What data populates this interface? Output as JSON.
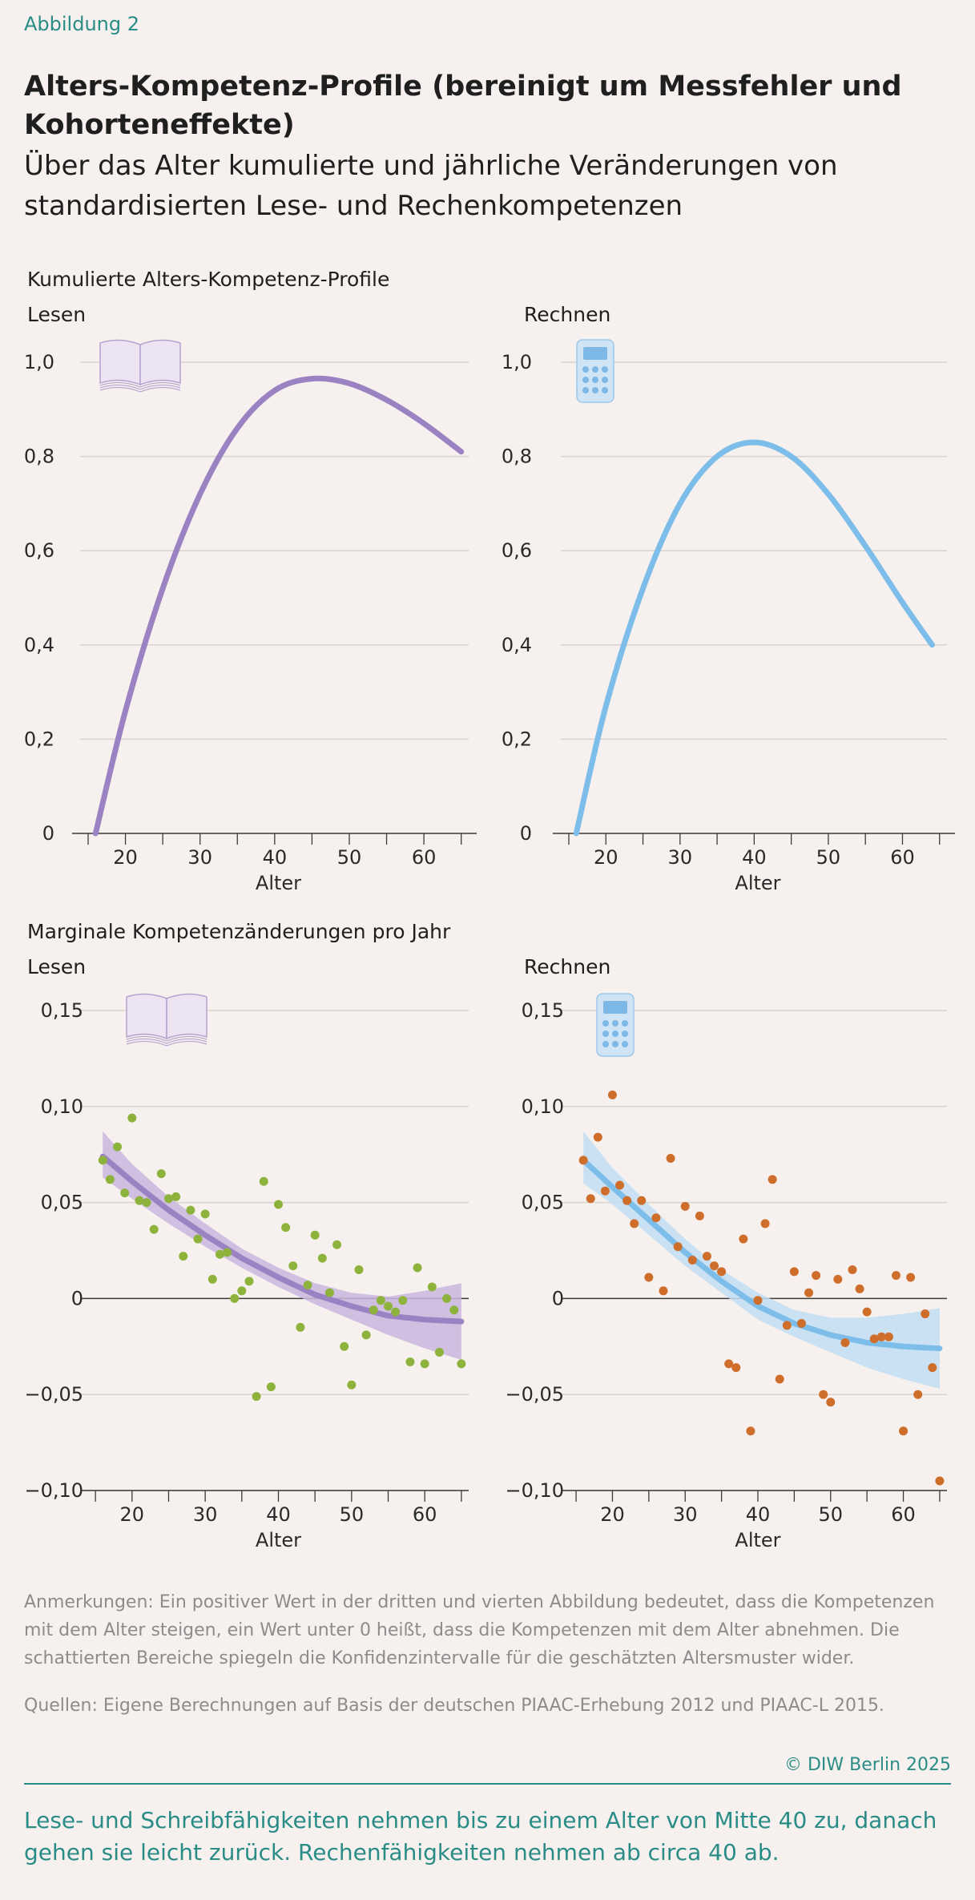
{
  "header": {
    "kicker": "Abbildung 2",
    "title": "Alters-Kompetenz-Profile (bereinigt um Messfehler und Kohorteneffekte)",
    "subtitle": "Über das Alter kumulierte und jährliche Veränderungen von standardisierten Lese- und Rechenkompetenzen"
  },
  "sections": {
    "cumulative": "Kumulierte Alters-Kompetenz-Profile",
    "marginal": "Marginale Kompetenzänderungen pro Jahr"
  },
  "colors": {
    "lesen": "#9b82c2",
    "lesen_band": "#c9b6de",
    "rechnen": "#7dbde9",
    "rechnen_band": "#c2def3",
    "lesen_dots": "#8db33c",
    "rechnen_dots": "#cf6d2a",
    "accent": "#2a8c86"
  },
  "icons": {
    "lesen": "book-icon",
    "rechnen": "calculator-icon"
  },
  "chart_data": [
    {
      "type": "line",
      "panel": "Lesen",
      "xlabel": "Alter",
      "ylabel": "",
      "xlim": [
        15,
        66
      ],
      "ylim": [
        0,
        1.0
      ],
      "x_ticks": [
        20,
        30,
        40,
        50,
        60
      ],
      "y_ticks": [
        0,
        0.2,
        0.4,
        0.6,
        0.8,
        1.0
      ],
      "y_tick_labels": [
        "0",
        "0,2",
        "0,4",
        "0,6",
        "0,8",
        "1,0"
      ],
      "series": [
        {
          "x": [
            16,
            20,
            25,
            30,
            35,
            40,
            45,
            50,
            55,
            60,
            65
          ],
          "y": [
            0.0,
            0.26,
            0.52,
            0.72,
            0.86,
            0.94,
            0.965,
            0.955,
            0.92,
            0.87,
            0.81
          ]
        }
      ]
    },
    {
      "type": "line",
      "panel": "Rechnen",
      "xlabel": "Alter",
      "ylabel": "",
      "xlim": [
        15,
        66
      ],
      "ylim": [
        0,
        1.0
      ],
      "x_ticks": [
        20,
        30,
        40,
        50,
        60
      ],
      "y_ticks": [
        0,
        0.2,
        0.4,
        0.6,
        0.8,
        1.0
      ],
      "y_tick_labels": [
        "0",
        "0,2",
        "0,4",
        "0,6",
        "0,8",
        "1,0"
      ],
      "series": [
        {
          "x": [
            16,
            20,
            25,
            30,
            35,
            40,
            45,
            50,
            55,
            60,
            64
          ],
          "y": [
            0.0,
            0.27,
            0.52,
            0.7,
            0.8,
            0.83,
            0.8,
            0.72,
            0.61,
            0.49,
            0.4
          ]
        }
      ]
    },
    {
      "type": "scatter",
      "panel": "Lesen",
      "xlabel": "Alter",
      "ylabel": "",
      "xlim": [
        14,
        66
      ],
      "ylim": [
        -0.1,
        0.16
      ],
      "x_ticks": [
        20,
        30,
        40,
        50,
        60
      ],
      "y_ticks": [
        -0.1,
        -0.05,
        0,
        0.05,
        0.1,
        0.15
      ],
      "y_tick_labels": [
        "−0,10",
        "−0,05",
        "0",
        "0,05",
        "0,10",
        "0,15"
      ],
      "fit": {
        "x": [
          16,
          20,
          25,
          30,
          35,
          40,
          45,
          50,
          55,
          60,
          65
        ],
        "y": [
          0.074,
          0.061,
          0.046,
          0.033,
          0.021,
          0.011,
          0.002,
          -0.004,
          -0.009,
          -0.011,
          -0.012
        ],
        "lower": [
          0.063,
          0.052,
          0.039,
          0.027,
          0.016,
          0.006,
          -0.003,
          -0.011,
          -0.019,
          -0.026,
          -0.032
        ],
        "upper": [
          0.087,
          0.07,
          0.053,
          0.039,
          0.026,
          0.016,
          0.008,
          0.003,
          0.001,
          0.004,
          0.008
        ]
      },
      "points": {
        "x": [
          16,
          17,
          18,
          19,
          20,
          21,
          22,
          23,
          24,
          25,
          26,
          27,
          28,
          29,
          30,
          31,
          32,
          33,
          34,
          35,
          36,
          37,
          38,
          39,
          40,
          41,
          42,
          43,
          44,
          45,
          46,
          47,
          48,
          49,
          50,
          51,
          52,
          53,
          54,
          55,
          56,
          57,
          58,
          59,
          60,
          61,
          62,
          63,
          64,
          65
        ],
        "y": [
          0.072,
          0.062,
          0.079,
          0.055,
          0.094,
          0.051,
          0.05,
          0.036,
          0.065,
          0.052,
          0.053,
          0.022,
          0.046,
          0.031,
          0.044,
          0.01,
          0.023,
          0.024,
          0.0,
          0.004,
          0.009,
          -0.051,
          0.061,
          -0.046,
          0.049,
          0.037,
          0.017,
          -0.015,
          0.007,
          0.033,
          0.021,
          0.003,
          0.028,
          -0.025,
          -0.045,
          0.015,
          -0.019,
          -0.006,
          -0.001,
          -0.004,
          -0.007,
          -0.001,
          -0.033,
          0.016,
          -0.034,
          0.006,
          -0.028,
          0.0,
          -0.006,
          -0.034
        ]
      }
    },
    {
      "type": "scatter",
      "panel": "Rechnen",
      "xlabel": "Alter",
      "ylabel": "",
      "xlim": [
        14,
        66
      ],
      "ylim": [
        -0.1,
        0.16
      ],
      "x_ticks": [
        20,
        30,
        40,
        50,
        60
      ],
      "y_ticks": [
        -0.1,
        -0.05,
        0,
        0.05,
        0.1,
        0.15
      ],
      "y_tick_labels": [
        "−0,10",
        "−0,05",
        "0",
        "0,05",
        "0,10",
        "0,15"
      ],
      "fit": {
        "x": [
          16,
          20,
          25,
          30,
          35,
          40,
          45,
          50,
          55,
          60,
          65
        ],
        "y": [
          0.072,
          0.058,
          0.041,
          0.024,
          0.009,
          -0.004,
          -0.013,
          -0.019,
          -0.023,
          -0.025,
          -0.026
        ],
        "lower": [
          0.06,
          0.049,
          0.033,
          0.017,
          0.003,
          -0.011,
          -0.02,
          -0.028,
          -0.036,
          -0.042,
          -0.047
        ],
        "upper": [
          0.087,
          0.068,
          0.049,
          0.031,
          0.015,
          0.003,
          -0.006,
          -0.01,
          -0.01,
          -0.008,
          -0.005
        ]
      },
      "points": {
        "x": [
          16,
          17,
          18,
          19,
          20,
          21,
          22,
          23,
          24,
          25,
          26,
          27,
          28,
          29,
          30,
          31,
          32,
          33,
          34,
          35,
          36,
          37,
          38,
          39,
          40,
          41,
          42,
          43,
          44,
          45,
          46,
          47,
          48,
          49,
          50,
          51,
          52,
          53,
          54,
          55,
          56,
          57,
          58,
          59,
          60,
          61,
          62,
          63,
          64,
          65
        ],
        "y": [
          0.072,
          0.052,
          0.084,
          0.056,
          0.106,
          0.059,
          0.051,
          0.039,
          0.051,
          0.011,
          0.042,
          0.004,
          0.073,
          0.027,
          0.048,
          0.02,
          0.043,
          0.022,
          0.017,
          0.014,
          -0.034,
          -0.036,
          0.031,
          -0.069,
          -0.001,
          0.039,
          0.062,
          -0.042,
          -0.014,
          0.014,
          -0.013,
          0.003,
          0.012,
          -0.05,
          -0.054,
          0.01,
          -0.023,
          0.015,
          0.005,
          -0.007,
          -0.021,
          -0.02,
          -0.02,
          0.012,
          -0.069,
          0.011,
          -0.05,
          -0.008,
          -0.036,
          -0.095
        ]
      }
    }
  ],
  "footer": {
    "notes": "Anmerkungen: Ein positiver Wert in der dritten und vierten Abbildung bedeutet, dass die Kompetenzen mit dem Alter steigen, ein Wert unter 0 heißt, dass die Kompetenzen mit dem Alter abnehmen.  Die schattierten Bereiche spiegeln die Konfidenzintervalle für die geschätzten Altersmuster wider.",
    "sources": "Quellen: Eigene Berechnungen auf Basis der deutschen PIAAC-Erhebung 2012 und PIAAC-L 2015.",
    "copyright": "© DIW Berlin 2025",
    "takeaway": "Lese- und Schreibfähigkeiten nehmen bis zu einem Alter von Mitte 40 zu, danach gehen sie leicht zurück. Rechenfähigkeiten nehmen ab circa 40 ab."
  }
}
